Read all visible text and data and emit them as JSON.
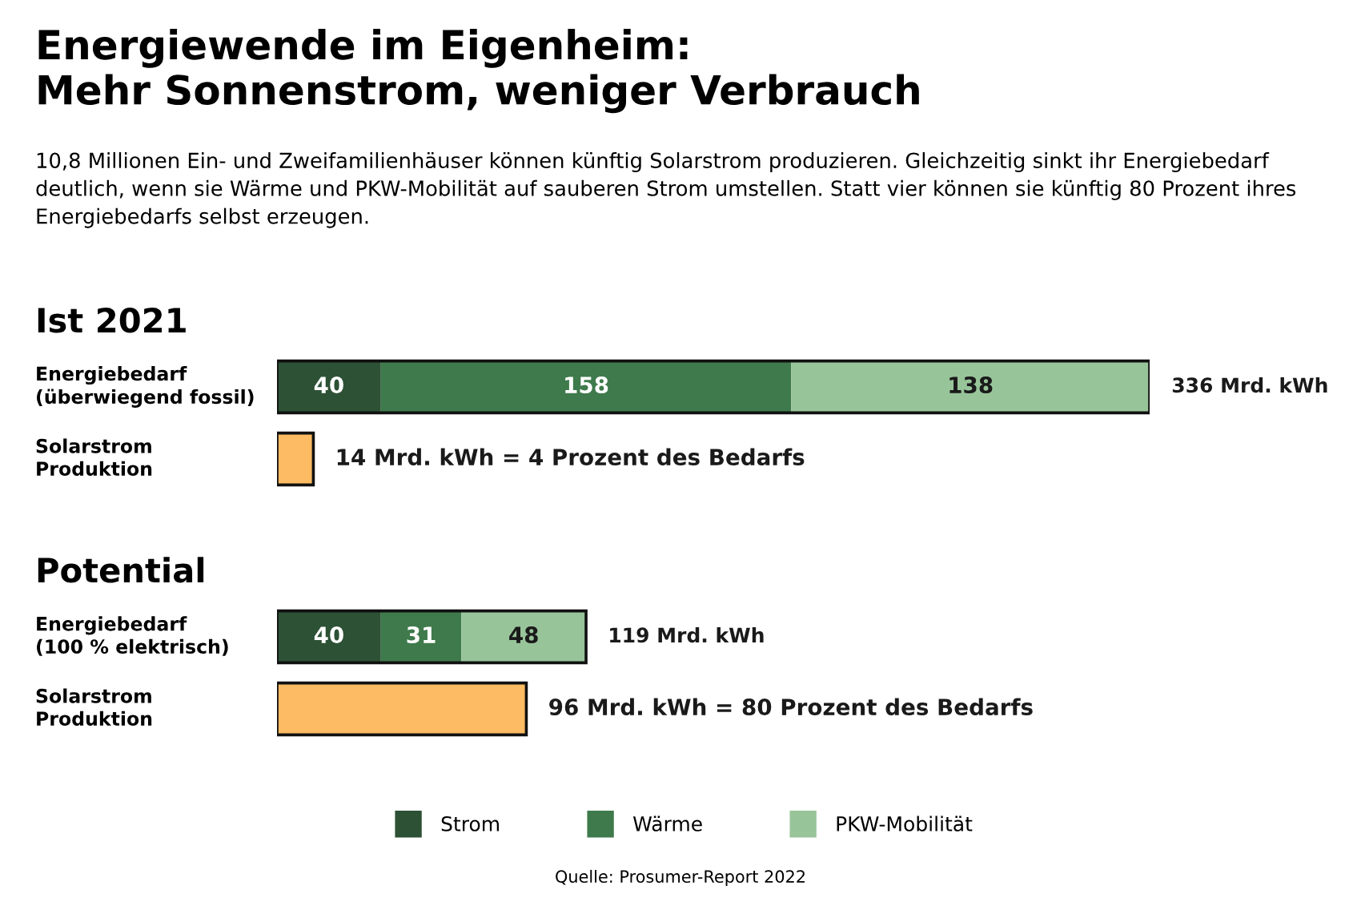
{
  "chart_data": [
    {
      "type": "other",
      "title": "Energiewende im Eigenheim:\nMehr Sonnenstrom, weniger Verbrauch",
      "subtitle": "10,8 Millionen Ein- und Zweifamilienhäuser können künftig Solarstrom produzieren. Gleichzeitig sinkt ihr Energiebedarf\ndeutlich, wenn sie Wärme und PKW-Mobilität auf sauberen Strom umstellen. Statt vier können sie künftig 80 Prozent ihres\nEnergiebedarfs selbst erzeugen."
    },
    {
      "type": "bar",
      "orientation": "horizontal",
      "stacked": true,
      "title": "Ist 2021",
      "categories": [
        "Energiebedarf\n(überwiegend fossil)",
        "Solarstrom\nProduktion"
      ],
      "series": [
        {
          "name": "Strom",
          "color": "#2d5135",
          "values": [
            40,
            null
          ],
          "value_labels": [
            "40",
            null
          ]
        },
        {
          "name": "Wärme",
          "color": "#3f7a4c",
          "values": [
            158,
            null
          ],
          "value_labels": [
            "158",
            null
          ]
        },
        {
          "name": "PKW-Mobilität",
          "color": "#98c49a",
          "values": [
            138,
            null
          ],
          "value_labels": [
            "138",
            null
          ]
        },
        {
          "color": "#fdbb63",
          "values": [
            null,
            14
          ],
          "value_labels": [
            null,
            "14 Mrd. kWh = 4 Prozent des Bedarfs"
          ]
        }
      ],
      "totals": [
        "336 Mrd. kWh",
        null
      ],
      "legend": "bottom"
    },
    {
      "type": "bar",
      "orientation": "horizontal",
      "stacked": true,
      "title": "Potential",
      "categories": [
        "Energiebedarf\n(100 % elektrisch)",
        "Solarstrom\nProduktion"
      ],
      "series": [
        {
          "color": "#2d5135",
          "values": [
            40,
            null
          ],
          "value_labels": [
            "40",
            null
          ]
        },
        {
          "color": "#3f7a4c",
          "values": [
            31,
            null
          ],
          "value_labels": [
            "31",
            null
          ]
        },
        {
          "color": "#98c49a",
          "values": [
            48,
            null
          ],
          "value_labels": [
            "48",
            null
          ]
        },
        {
          "color": "#fdbb63",
          "values": [
            null,
            96
          ],
          "value_labels": [
            null,
            "96 Mrd. kWh = 80 Prozent des Bedarfs"
          ]
        }
      ],
      "totals": [
        "119 Mrd. kWh",
        null
      ],
      "annotations": [
        "Quelle: Prosumer-Report 2022"
      ]
    }
  ]
}
